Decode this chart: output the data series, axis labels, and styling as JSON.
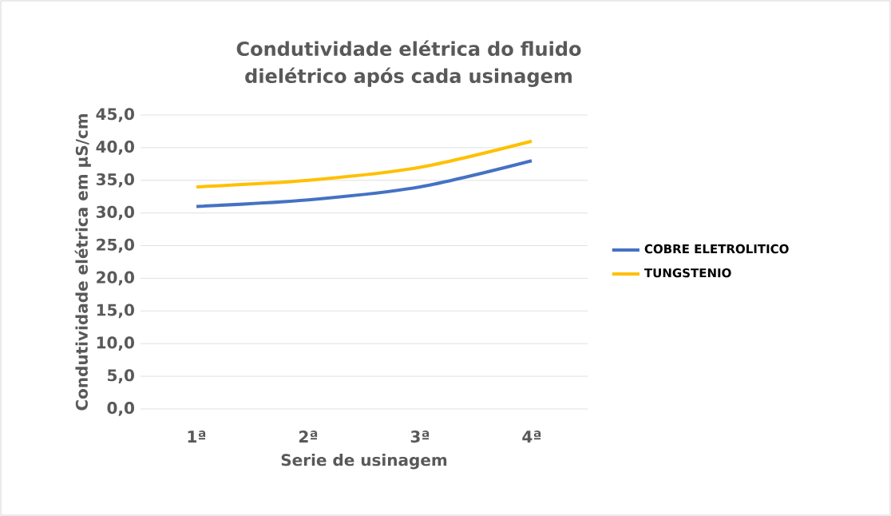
{
  "chart_data": {
    "type": "line",
    "title": "Condutividade elétrica  do fluido dielétrico após cada usinagem",
    "xlabel": "Serie de usinagem",
    "ylabel": "Condutividade elétrica em µS/cm",
    "categories": [
      "1ª",
      "2ª",
      "3ª",
      "4ª"
    ],
    "series": [
      {
        "name": "COBRE ELETROLITICO",
        "color": "#4472c4",
        "values": [
          31,
          32,
          34,
          38
        ]
      },
      {
        "name": "TUNGSTENIO",
        "color": "#ffc000",
        "values": [
          34,
          35,
          37,
          41
        ]
      }
    ],
    "ylim": [
      0,
      45
    ],
    "yticks": [
      {
        "value": 0,
        "label": "0,0"
      },
      {
        "value": 5,
        "label": "5,0"
      },
      {
        "value": 10,
        "label": "10,0"
      },
      {
        "value": 15,
        "label": "15,0"
      },
      {
        "value": 20,
        "label": "20,0"
      },
      {
        "value": 25,
        "label": "25,0"
      },
      {
        "value": 30,
        "label": "30,0"
      },
      {
        "value": 35,
        "label": "35,0"
      },
      {
        "value": 40,
        "label": "40,0"
      },
      {
        "value": 45,
        "label": "45,0"
      }
    ],
    "grid": "y",
    "legend": "right",
    "marker": "none",
    "line_style": "solid"
  }
}
